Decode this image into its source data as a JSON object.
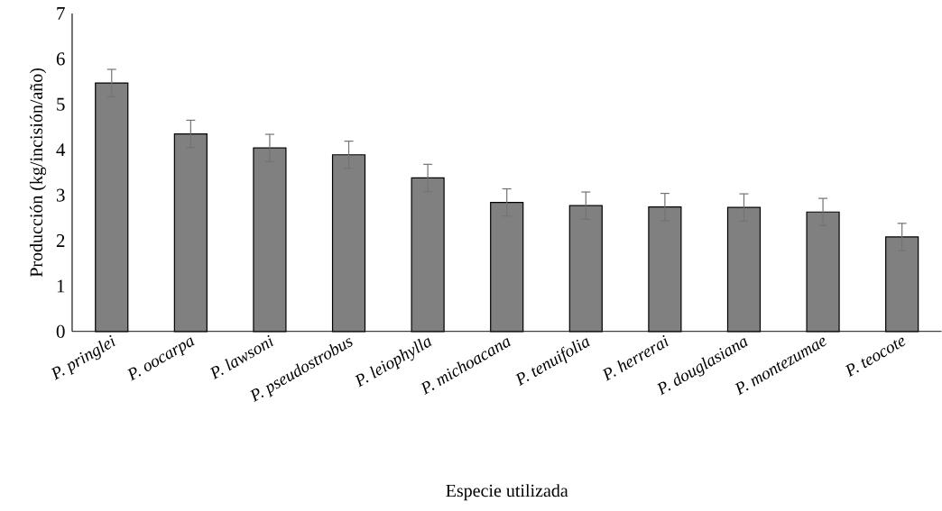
{
  "chart_data": {
    "type": "bar",
    "xlabel": "Especie utilizada",
    "ylabel": "Producción (kg/incisión/año)",
    "categories": [
      "P. pringlei",
      "P. oocarpa",
      "P. lawsoni",
      "P. pseudostrobus",
      "P. leiophylla",
      "P. michoacana",
      "P. tenuifolia",
      "P. herrerai",
      "P. douglasiana",
      "P. montezumae",
      "P. teocote"
    ],
    "values": [
      5.47,
      4.35,
      4.04,
      3.89,
      3.38,
      2.84,
      2.77,
      2.74,
      2.73,
      2.63,
      2.08
    ],
    "errors": [
      0.3,
      0.3,
      0.3,
      0.3,
      0.3,
      0.3,
      0.3,
      0.3,
      0.3,
      0.3,
      0.3
    ],
    "color": "#808080",
    "ylim": [
      0,
      7
    ],
    "yticks": [
      0,
      1,
      2,
      3,
      4,
      5,
      6,
      7
    ]
  }
}
